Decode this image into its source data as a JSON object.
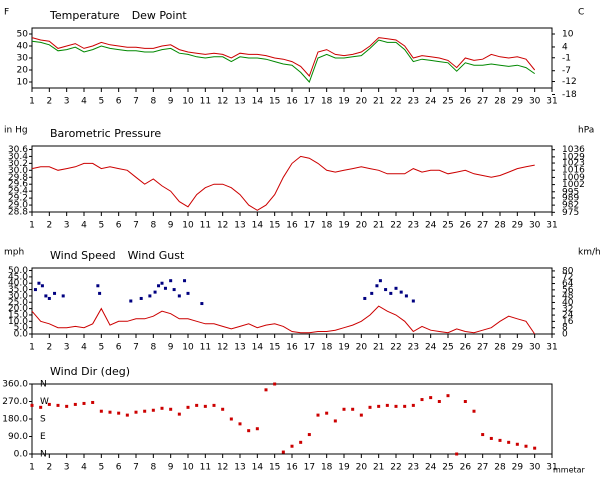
{
  "chart_data": [
    {
      "type": "line",
      "y_unit": "F",
      "y2_unit": "C",
      "xlim": [
        1,
        31
      ],
      "xticks": [
        1,
        2,
        3,
        4,
        5,
        6,
        7,
        8,
        9,
        10,
        11,
        12,
        13,
        14,
        15,
        16,
        17,
        18,
        19,
        20,
        21,
        22,
        23,
        24,
        25,
        26,
        27,
        28,
        29,
        30,
        31
      ],
      "ylim": [
        5,
        55
      ],
      "yticks": [
        10,
        20,
        30,
        40,
        50
      ],
      "y2lim": [
        -15,
        12.78
      ],
      "y2ticks": [
        10,
        4,
        -1,
        -7,
        -12,
        -18
      ],
      "x": [
        1,
        1.5,
        2,
        2.5,
        3,
        3.5,
        4,
        4.5,
        5,
        5.5,
        6,
        6.5,
        7,
        7.5,
        8,
        8.5,
        9,
        9.5,
        10,
        10.5,
        11,
        11.5,
        12,
        12.5,
        13,
        13.5,
        14,
        14.5,
        15,
        15.5,
        16,
        16.5,
        17,
        17.5,
        18,
        18.5,
        19,
        19.5,
        20,
        20.5,
        21,
        21.5,
        22,
        22.5,
        23,
        23.5,
        24,
        24.5,
        25,
        25.5,
        26,
        26.5,
        27,
        27.5,
        28,
        28.5,
        29,
        29.5,
        30
      ],
      "series": [
        {
          "name": "Temperature",
          "color": "#cc0000",
          "values": [
            47,
            45,
            44,
            38,
            40,
            42,
            38,
            40,
            43,
            41,
            40,
            39,
            39,
            38,
            38,
            40,
            41,
            37,
            35,
            34,
            33,
            34,
            33,
            30,
            34,
            33,
            33,
            32,
            30,
            29,
            27,
            23,
            15,
            35,
            37,
            33,
            32,
            33,
            35,
            40,
            47,
            46,
            45,
            40,
            30,
            32,
            31,
            30,
            28,
            22,
            30,
            28,
            29,
            33,
            31,
            30,
            31,
            29,
            20
          ]
        },
        {
          "name": "Dew Point",
          "color": "#008800",
          "values": [
            44,
            43,
            41,
            36,
            37,
            39,
            35,
            37,
            40,
            38,
            37,
            36,
            36,
            35,
            35,
            37,
            38,
            34,
            33,
            31,
            30,
            31,
            31,
            27,
            31,
            30,
            30,
            29,
            27,
            25,
            24,
            18,
            10,
            30,
            33,
            30,
            30,
            31,
            32,
            38,
            45,
            43,
            43,
            37,
            27,
            29,
            28,
            27,
            26,
            19,
            26,
            24,
            24,
            25,
            24,
            23,
            24,
            22,
            17
          ]
        }
      ]
    },
    {
      "type": "line",
      "y_unit": "in Hg",
      "y2_unit": "hPa",
      "xlim": [
        1,
        31
      ],
      "xticks": [
        1,
        2,
        3,
        4,
        5,
        6,
        7,
        8,
        9,
        10,
        11,
        12,
        13,
        14,
        15,
        16,
        17,
        18,
        19,
        20,
        21,
        22,
        23,
        24,
        25,
        26,
        27,
        28,
        29,
        30,
        31
      ],
      "ylim": [
        28.8,
        30.7
      ],
      "yticks": [
        30.6,
        30.4,
        30.2,
        {
          "value": 30,
          "label": "30.0"
        },
        29.8,
        29.6,
        29.4,
        29.2,
        {
          "value": 29,
          "label": "29.0"
        },
        28.8
      ],
      "y2lim": [
        975.3,
        1039.6
      ],
      "y2ticks": [
        1036,
        1029,
        1023,
        1016,
        1009,
        1002,
        995,
        989,
        982,
        975
      ],
      "x": [
        1,
        1.5,
        2,
        2.5,
        3,
        3.5,
        4,
        4.5,
        5,
        5.5,
        6,
        6.5,
        7,
        7.5,
        8,
        8.5,
        9,
        9.5,
        10,
        10.5,
        11,
        11.5,
        12,
        12.5,
        13,
        13.5,
        14,
        14.5,
        15,
        15.5,
        16,
        16.5,
        17,
        17.5,
        18,
        18.5,
        19,
        19.5,
        20,
        20.5,
        21,
        21.5,
        22,
        22.5,
        23,
        23.5,
        24,
        24.5,
        25,
        25.5,
        26,
        26.5,
        27,
        27.5,
        28,
        28.5,
        29,
        29.5,
        30
      ],
      "series": [
        {
          "name": "Barometric Pressure",
          "color": "#cc0000",
          "values": [
            30.05,
            30.1,
            30.1,
            30.0,
            30.05,
            30.1,
            30.2,
            30.2,
            30.05,
            30.1,
            30.05,
            30.0,
            29.8,
            29.6,
            29.75,
            29.55,
            29.4,
            29.1,
            28.95,
            29.3,
            29.5,
            29.6,
            29.6,
            29.5,
            29.3,
            29.0,
            28.85,
            29.0,
            29.3,
            29.8,
            30.2,
            30.4,
            30.35,
            30.2,
            30.0,
            29.95,
            30.0,
            30.05,
            30.1,
            30.05,
            30.0,
            29.9,
            29.9,
            29.9,
            30.05,
            29.95,
            30.0,
            30.0,
            29.9,
            29.95,
            30.0,
            29.9,
            29.85,
            29.8,
            29.85,
            29.95,
            30.05,
            30.1,
            30.15
          ]
        }
      ]
    },
    {
      "type": "line",
      "y_unit": "mph",
      "y2_unit": "km/h",
      "xlim": [
        1,
        31
      ],
      "xticks": [
        1,
        2,
        3,
        4,
        5,
        6,
        7,
        8,
        9,
        10,
        11,
        12,
        13,
        14,
        15,
        16,
        17,
        18,
        19,
        20,
        21,
        22,
        23,
        24,
        25,
        26,
        27,
        28,
        29,
        30,
        31
      ],
      "ylim": [
        0,
        52
      ],
      "yticks": [
        {
          "value": 50,
          "label": "50.0"
        },
        {
          "value": 45,
          "label": "45.0"
        },
        {
          "value": 40,
          "label": "40.0"
        },
        {
          "value": 35,
          "label": "35.0"
        },
        {
          "value": 30,
          "label": "30.0"
        },
        {
          "value": 25,
          "label": "25.0"
        },
        {
          "value": 20,
          "label": "20.0"
        },
        {
          "value": 15,
          "label": "15.0"
        },
        {
          "value": 10,
          "label": "10.0"
        },
        {
          "value": 5,
          "label": "5.0"
        },
        {
          "value": 0,
          "label": "0.0"
        }
      ],
      "y2lim": [
        0,
        83.7
      ],
      "y2ticks": [
        80,
        72,
        64,
        56,
        48,
        40,
        32,
        24,
        16,
        8,
        0
      ],
      "x": [
        1,
        1.5,
        2,
        2.5,
        3,
        3.5,
        4,
        4.5,
        5,
        5.5,
        6,
        6.5,
        7,
        7.5,
        8,
        8.5,
        9,
        9.5,
        10,
        10.5,
        11,
        11.5,
        12,
        12.5,
        13,
        13.5,
        14,
        14.5,
        15,
        15.5,
        16,
        16.5,
        17,
        17.5,
        18,
        18.5,
        19,
        19.5,
        20,
        20.5,
        21,
        21.5,
        22,
        22.5,
        23,
        23.5,
        24,
        24.5,
        25,
        25.5,
        26,
        26.5,
        27,
        27.5,
        28,
        28.5,
        29,
        29.5,
        30
      ],
      "series": [
        {
          "name": "Wind Speed",
          "color": "#cc0000",
          "values": [
            18,
            10,
            8,
            5,
            5,
            6,
            5,
            8,
            20,
            7,
            10,
            10,
            12,
            12,
            14,
            18,
            16,
            12,
            12,
            10,
            8,
            8,
            6,
            4,
            6,
            8,
            5,
            7,
            8,
            6,
            2,
            1,
            1,
            2,
            2,
            3,
            5,
            7,
            10,
            15,
            22,
            18,
            15,
            10,
            2,
            6,
            3,
            2,
            1,
            4,
            2,
            1,
            3,
            5,
            10,
            14,
            12,
            10,
            0
          ]
        },
        {
          "name": "Wind Gust",
          "color": "#000080",
          "type": "scatter",
          "x": [
            1.2,
            1.4,
            1.6,
            1.8,
            2,
            2.3,
            2.8,
            4.8,
            4.9,
            6.7,
            7.3,
            7.8,
            8.1,
            8.3,
            8.5,
            8.7,
            9,
            9.2,
            9.5,
            9.8,
            10,
            10.8,
            20.2,
            20.6,
            20.9,
            21.1,
            21.4,
            21.7,
            22,
            22.3,
            22.6,
            23
          ],
          "values": [
            35,
            40,
            38,
            30,
            28,
            32,
            30,
            38,
            32,
            26,
            28,
            30,
            33,
            38,
            40,
            36,
            42,
            35,
            30,
            42,
            32,
            24,
            28,
            32,
            38,
            42,
            35,
            32,
            36,
            33,
            30,
            26
          ]
        }
      ]
    },
    {
      "type": "scatter",
      "credit": "mmetar",
      "xlim": [
        1,
        31
      ],
      "xticks": [
        1,
        2,
        3,
        4,
        5,
        6,
        7,
        8,
        9,
        10,
        11,
        12,
        13,
        14,
        15,
        16,
        17,
        18,
        19,
        20,
        21,
        22,
        23,
        24,
        25,
        26,
        27,
        28,
        29,
        30,
        31
      ],
      "ylim": [
        0,
        360
      ],
      "yticks": [
        {
          "value": 360,
          "label": "360.0"
        },
        {
          "value": 270,
          "label": "270.0"
        },
        {
          "value": 180,
          "label": "180.0"
        },
        {
          "value": 90,
          "label": "90.0"
        },
        {
          "value": 0,
          "label": "0.0"
        }
      ],
      "compass_ticks": [
        {
          "value": 360,
          "label": "N"
        },
        {
          "value": 270,
          "label": "W"
        },
        {
          "value": 180,
          "label": "S"
        },
        {
          "value": 90,
          "label": "E"
        },
        {
          "value": 0,
          "label": "N"
        }
      ],
      "x": [
        1,
        1.5,
        2,
        2.5,
        3,
        3.5,
        4,
        4.5,
        5,
        5.5,
        6,
        6.5,
        7,
        7.5,
        8,
        8.5,
        9,
        9.5,
        10,
        10.5,
        11,
        11.5,
        12,
        12.5,
        13,
        13.5,
        14,
        14.5,
        15,
        15.5,
        16,
        16.5,
        17,
        17.5,
        18,
        18.5,
        19,
        19.5,
        20,
        20.5,
        21,
        21.5,
        22,
        22.5,
        23,
        23.5,
        24,
        24.5,
        25,
        25.5,
        26,
        26.5,
        27,
        27.5,
        28,
        28.5,
        29,
        29.5,
        30
      ],
      "series": [
        {
          "name": "Wind Dir (deg)",
          "color": "#cc0000",
          "values": [
            250,
            240,
            255,
            250,
            245,
            255,
            260,
            265,
            220,
            215,
            210,
            200,
            215,
            220,
            225,
            235,
            230,
            205,
            240,
            250,
            245,
            250,
            230,
            180,
            155,
            120,
            130,
            330,
            360,
            10,
            40,
            60,
            100,
            200,
            210,
            170,
            230,
            230,
            200,
            240,
            245,
            250,
            245,
            245,
            250,
            280,
            290,
            270,
            300,
            0,
            270,
            220,
            100,
            80,
            70,
            60,
            50,
            40,
            30
          ]
        }
      ]
    }
  ]
}
